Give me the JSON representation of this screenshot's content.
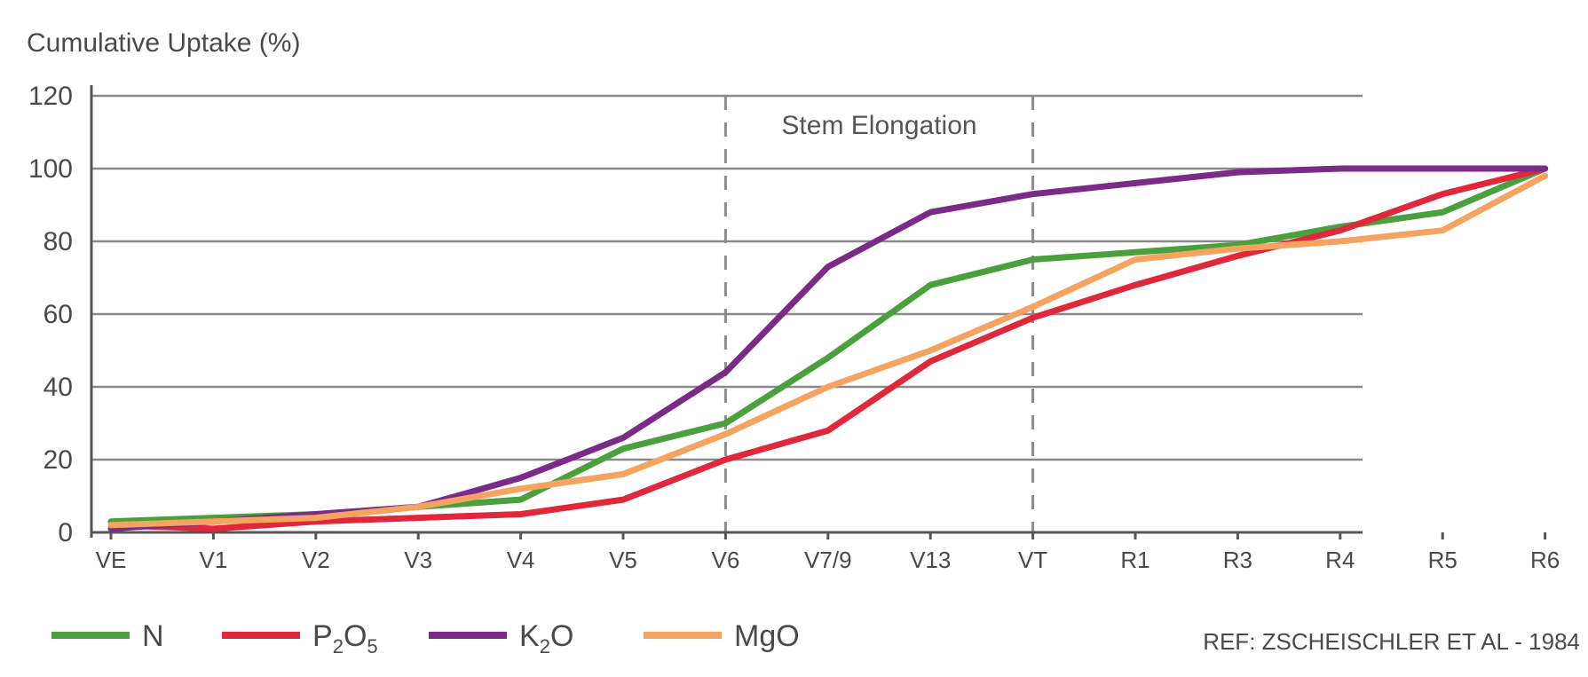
{
  "chart_data": {
    "type": "line",
    "ylabel": "Cumulative Uptake (%)",
    "ylim": [
      0,
      120
    ],
    "yticks": [
      0,
      20,
      40,
      60,
      80,
      100,
      120
    ],
    "grid": true,
    "categories": [
      "VE",
      "V1",
      "V2",
      "V3",
      "V4",
      "V5",
      "V6",
      "V7/9",
      "V13",
      "VT",
      "R1",
      "R3",
      "R4",
      "R5",
      "R6"
    ],
    "series": [
      {
        "name": "N",
        "color": "#4aa03c",
        "values": [
          3,
          4,
          5,
          7,
          9,
          23,
          30,
          48,
          68,
          75,
          77,
          79,
          84,
          88,
          100
        ]
      },
      {
        "name": "P2O5",
        "color": "#e0283a",
        "values": [
          2,
          1,
          3,
          4,
          5,
          9,
          20,
          28,
          47,
          59,
          68,
          76,
          83,
          93,
          100
        ]
      },
      {
        "name": "K2O",
        "color": "#7b2a88",
        "values": [
          1,
          3,
          5,
          7,
          15,
          26,
          44,
          73,
          88,
          93,
          96,
          99,
          100,
          100,
          100
        ]
      },
      {
        "name": "MgO",
        "color": "#f4a460",
        "values": [
          2,
          3,
          4,
          7,
          12,
          16,
          27,
          40,
          50,
          62,
          75,
          78,
          80,
          83,
          98
        ]
      }
    ],
    "annotations": [
      {
        "text": "Stem Elongation",
        "from": "V6",
        "to": "VT"
      }
    ],
    "legend": {
      "position": "bottom-left",
      "items": [
        {
          "label": "N",
          "color": "#4aa03c"
        },
        {
          "base": "P",
          "sub": "2",
          "base2": "O",
          "sub2": "5",
          "color": "#e0283a"
        },
        {
          "base": "K",
          "sub": "2",
          "base2": "O",
          "sub2": "",
          "color": "#7b2a88"
        },
        {
          "label": "MgO",
          "color": "#f4a460"
        }
      ]
    },
    "source_note": "REF:  ZSCHEISCHLER ET AL - 1984"
  }
}
